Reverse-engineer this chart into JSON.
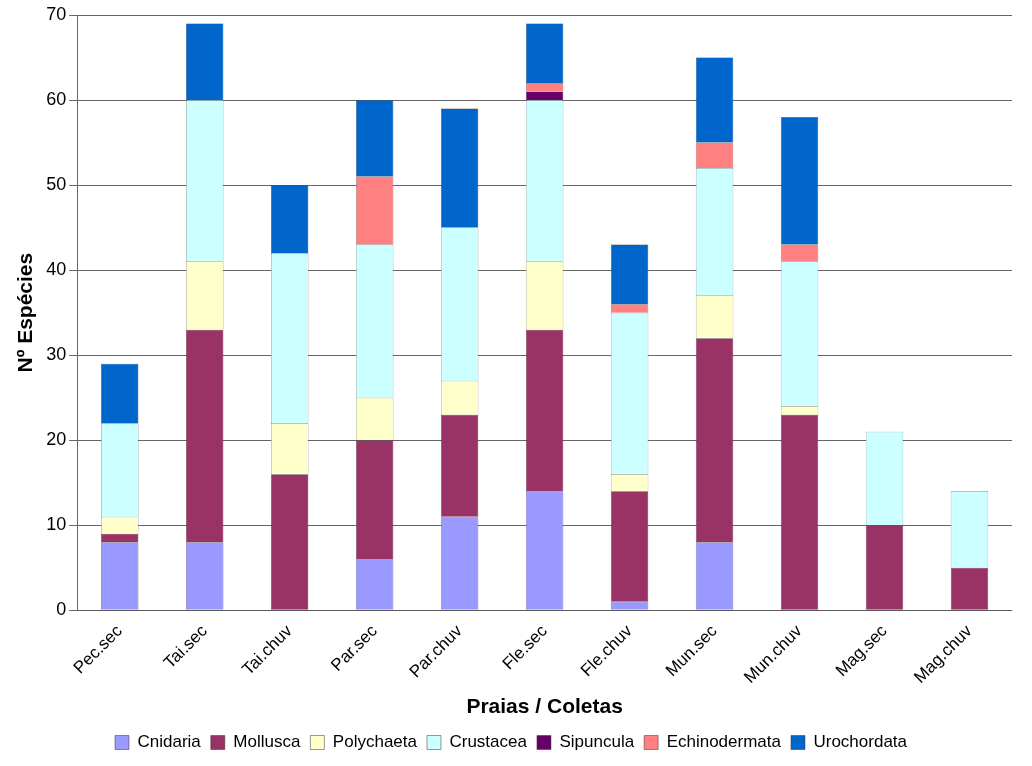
{
  "chart_data": {
    "type": "bar",
    "stacked": true,
    "xlabel": "Praias / Coletas",
    "ylabel": "Nº Espécies",
    "categories": [
      "Pec.sec",
      "Tai.sec",
      "Tai.chuv",
      "Par.sec",
      "Par.chuv",
      "Fle.sec",
      "Fle.chuv",
      "Mun.sec",
      "Mun.chuv",
      "Mag.sec",
      "Mag.chuv"
    ],
    "series": [
      {
        "name": "Cnidaria",
        "color": "#9999ff",
        "values": [
          8,
          8,
          0,
          6,
          11,
          14,
          1,
          8,
          0,
          0,
          0
        ]
      },
      {
        "name": "Mollusca",
        "color": "#993366",
        "values": [
          1,
          25,
          16,
          14,
          12,
          19,
          13,
          24,
          23,
          10,
          5
        ]
      },
      {
        "name": "Polychaeta",
        "color": "#ffffcc",
        "values": [
          2,
          8,
          6,
          5,
          4,
          8,
          2,
          5,
          1,
          0,
          0
        ]
      },
      {
        "name": "Crustacea",
        "color": "#ccffff",
        "values": [
          11,
          19,
          20,
          18,
          18,
          19,
          19,
          15,
          17,
          11,
          9
        ]
      },
      {
        "name": "Sipuncula",
        "color": "#660066",
        "values": [
          0,
          0,
          0,
          0,
          0,
          1,
          0,
          0,
          0,
          0,
          0
        ]
      },
      {
        "name": "Echinodermata",
        "color": "#ff8080",
        "values": [
          0,
          0,
          0,
          8,
          0,
          1,
          1,
          3,
          2,
          0,
          0
        ]
      },
      {
        "name": "Urochordata",
        "color": "#0066cc",
        "values": [
          7,
          9,
          8,
          9,
          14,
          7,
          7,
          10,
          15,
          0,
          0
        ]
      }
    ],
    "ylim": [
      0,
      70
    ],
    "yticks": [
      0,
      10,
      20,
      30,
      40,
      50,
      60,
      70
    ],
    "grid": "y",
    "legend": "bottom"
  }
}
